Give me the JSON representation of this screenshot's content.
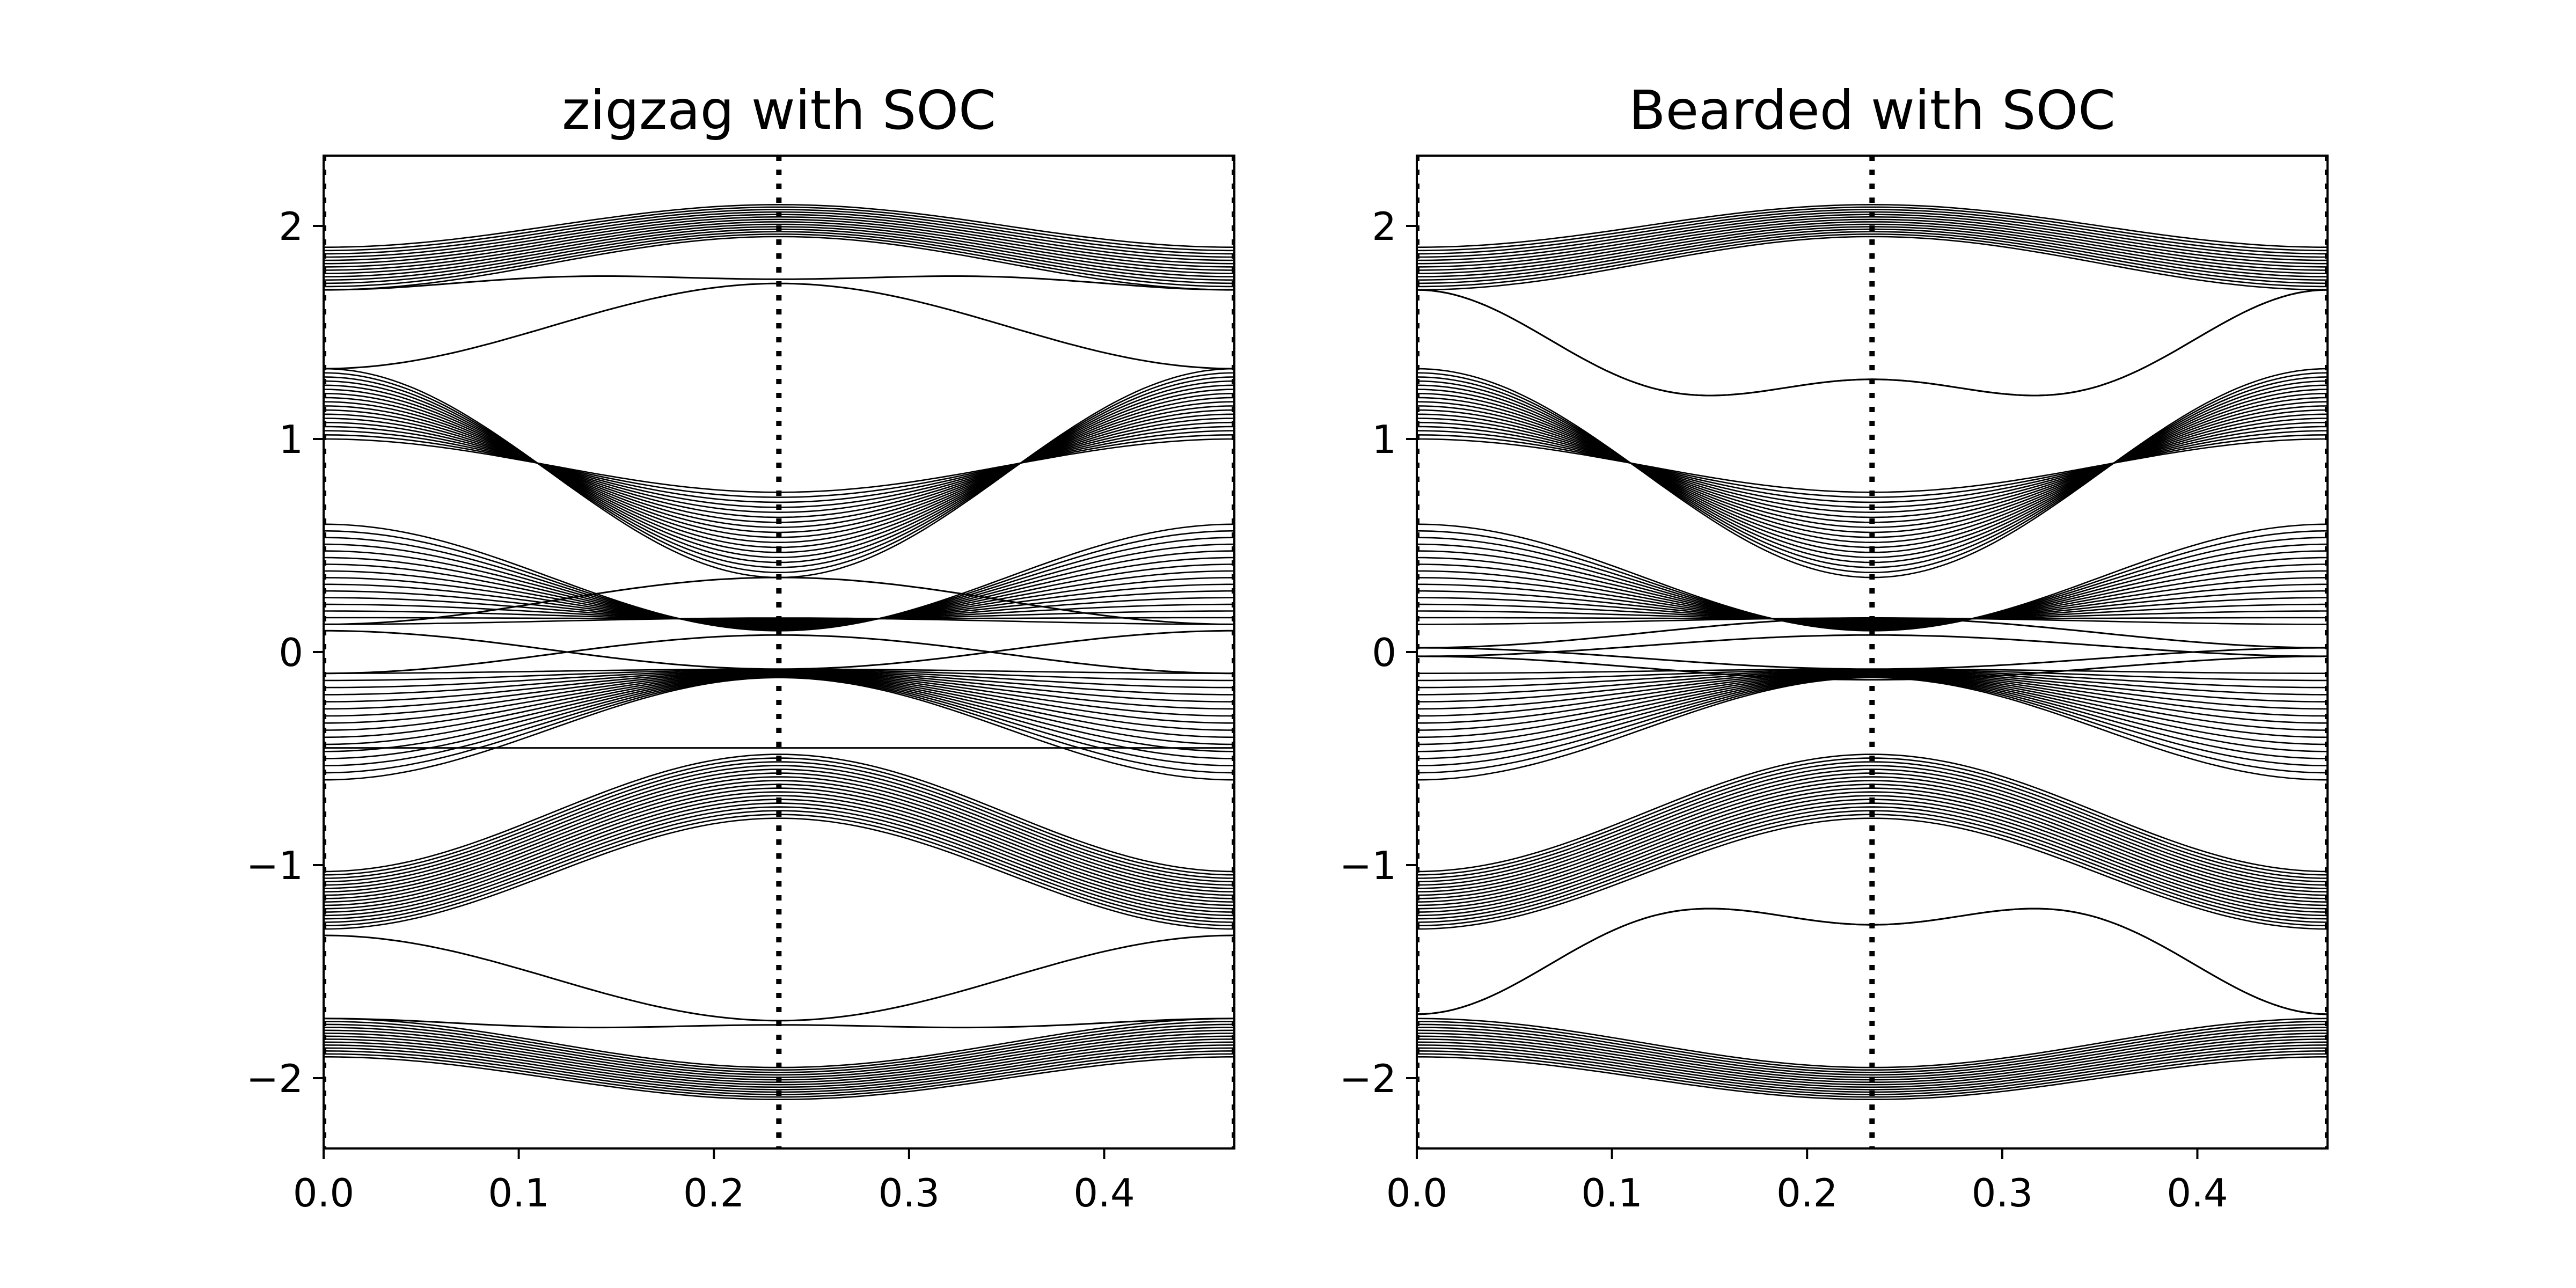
{
  "chart_data": [
    {
      "type": "line",
      "title": "zigzag with SOC",
      "xlabel": "",
      "ylabel": "",
      "xlim": [
        0.0,
        0.4667
      ],
      "ylim": [
        -2.33,
        2.33
      ],
      "x_ticks": [
        {
          "value": 0.0,
          "label": "0.0"
        },
        {
          "value": 0.1,
          "label": "0.1"
        },
        {
          "value": 0.2,
          "label": "0.2"
        },
        {
          "value": 0.3,
          "label": "0.3"
        },
        {
          "value": 0.4,
          "label": "0.4"
        }
      ],
      "y_ticks": [
        {
          "value": 2,
          "label": "2"
        },
        {
          "value": 1,
          "label": "1"
        },
        {
          "value": 0,
          "label": "0"
        },
        {
          "value": -1,
          "label": "−1"
        },
        {
          "value": -2,
          "label": "−2"
        }
      ],
      "vlines": [
        {
          "x": 0.0,
          "style": "dotted"
        },
        {
          "x": 0.2333,
          "style": "dotted"
        },
        {
          "x": 0.4667,
          "style": "dotted"
        }
      ],
      "line_color": "#000000",
      "bands": [
        {
          "edge": [
            1.9,
            1.7
          ],
          "top": [
            2.1,
            1.95
          ],
          "count": 14
        },
        {
          "edge": [
            1.33,
            1.0
          ],
          "top": [
            0.35,
            0.75
          ],
          "count": 18
        },
        {
          "edge": [
            0.6,
            0.13
          ],
          "top": [
            0.1,
            0.16
          ],
          "count": 16
        },
        {
          "edge": [
            -0.1,
            -0.6
          ],
          "top": [
            -0.08,
            -0.12
          ],
          "count": 16
        },
        {
          "edge": [
            -1.03,
            -1.3
          ],
          "top": [
            -0.48,
            -0.78
          ],
          "count": 18
        },
        {
          "edge": [
            -1.72,
            -1.9
          ],
          "top": [
            -1.95,
            -2.1
          ],
          "count": 14
        }
      ],
      "edge_states": [
        {
          "edge": 1.33,
          "center": 1.73
        },
        {
          "edge": 1.7,
          "center": 1.75,
          "mid": 1.76
        },
        {
          "edge": 0.13,
          "center": 0.35
        },
        {
          "edge": 0.1,
          "center": -0.08
        },
        {
          "edge": -0.1,
          "center": 0.08
        },
        {
          "edge": -0.45,
          "center": -0.45
        },
        {
          "edge": -1.33,
          "center": -1.73
        },
        {
          "edge": -1.72,
          "center": -1.75,
          "mid": -1.76
        }
      ]
    },
    {
      "type": "line",
      "title": "Bearded with SOC",
      "xlabel": "",
      "ylabel": "",
      "xlim": [
        0.0,
        0.4667
      ],
      "ylim": [
        -2.33,
        2.33
      ],
      "x_ticks": [
        {
          "value": 0.0,
          "label": "0.0"
        },
        {
          "value": 0.1,
          "label": "0.1"
        },
        {
          "value": 0.2,
          "label": "0.2"
        },
        {
          "value": 0.3,
          "label": "0.3"
        },
        {
          "value": 0.4,
          "label": "0.4"
        }
      ],
      "y_ticks": [
        {
          "value": 2,
          "label": "2"
        },
        {
          "value": 1,
          "label": "1"
        },
        {
          "value": 0,
          "label": "0"
        },
        {
          "value": -1,
          "label": "−1"
        },
        {
          "value": -2,
          "label": "−2"
        }
      ],
      "vlines": [
        {
          "x": 0.0,
          "style": "dotted"
        },
        {
          "x": 0.2333,
          "style": "dotted"
        },
        {
          "x": 0.4667,
          "style": "dotted"
        }
      ],
      "line_color": "#000000",
      "bands": [
        {
          "edge": [
            1.9,
            1.7
          ],
          "top": [
            2.1,
            1.95
          ],
          "count": 14
        },
        {
          "edge": [
            1.33,
            1.0
          ],
          "top": [
            0.35,
            0.75
          ],
          "count": 18
        },
        {
          "edge": [
            0.6,
            0.13
          ],
          "top": [
            0.1,
            0.16
          ],
          "count": 16
        },
        {
          "edge": [
            -0.1,
            -0.6
          ],
          "top": [
            -0.08,
            -0.12
          ],
          "count": 16
        },
        {
          "edge": [
            -1.03,
            -1.3
          ],
          "top": [
            -0.48,
            -0.78
          ],
          "count": 18
        },
        {
          "edge": [
            -1.72,
            -1.9
          ],
          "top": [
            -1.95,
            -2.1
          ],
          "count": 14
        }
      ],
      "edge_states": [
        {
          "edge": 1.7,
          "center": 1.28,
          "mid": 1.25
        },
        {
          "edge": 1.7,
          "center": 1.28,
          "mid": 1.25
        },
        {
          "edge": 0.02,
          "center": 0.16
        },
        {
          "edge": 0.02,
          "center": -0.08
        },
        {
          "edge": -0.02,
          "center": 0.08
        },
        {
          "edge": -0.02,
          "center": -0.13
        },
        {
          "edge": -1.7,
          "center": -1.28,
          "mid": -1.25
        },
        {
          "edge": -1.7,
          "center": -1.28,
          "mid": -1.25
        }
      ]
    }
  ]
}
